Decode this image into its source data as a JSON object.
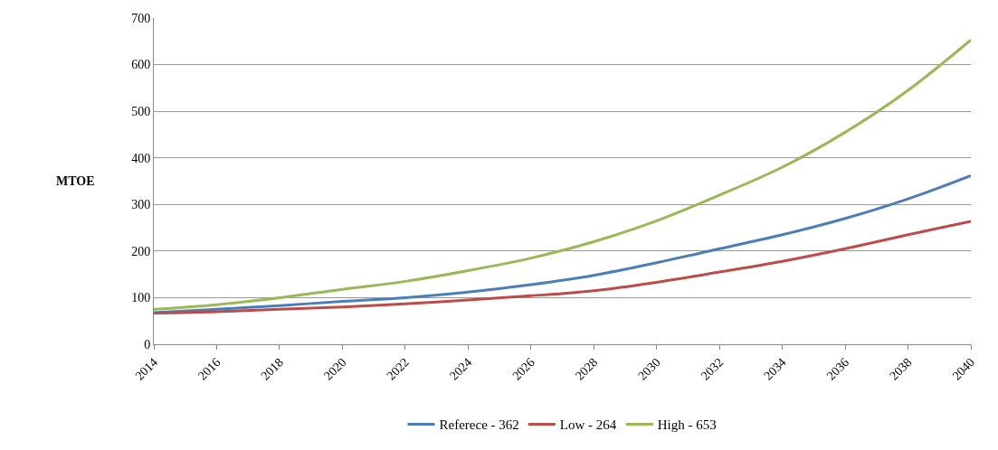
{
  "chart_data": {
    "type": "line",
    "ylabel": "MTOE",
    "x": [
      2014,
      2016,
      2018,
      2020,
      2022,
      2024,
      2026,
      2028,
      2030,
      2032,
      2034,
      2036,
      2038,
      2040
    ],
    "series": [
      {
        "name": "Referece - 362",
        "color": "#4a7ebb",
        "values": [
          68,
          75,
          83,
          92,
          100,
          112,
          128,
          148,
          175,
          205,
          235,
          270,
          312,
          362
        ]
      },
      {
        "name": "Low - 264",
        "color": "#be4b48",
        "values": [
          67,
          70,
          75,
          80,
          87,
          95,
          104,
          115,
          133,
          155,
          178,
          205,
          235,
          264
        ]
      },
      {
        "name": "High - 653",
        "color": "#98b954",
        "values": [
          75,
          85,
          100,
          118,
          135,
          158,
          185,
          220,
          265,
          320,
          380,
          455,
          545,
          653
        ]
      }
    ],
    "xlim": [
      2014,
      2040
    ],
    "xticks": [
      2014,
      2016,
      2018,
      2020,
      2022,
      2024,
      2026,
      2028,
      2030,
      2032,
      2034,
      2036,
      2038,
      2040
    ],
    "ylim": [
      0,
      700
    ],
    "yticks": [
      0,
      100,
      200,
      300,
      400,
      500,
      600,
      700
    ],
    "grid": "y",
    "legend": "bottom",
    "marker": "none",
    "line_style": "solid"
  }
}
